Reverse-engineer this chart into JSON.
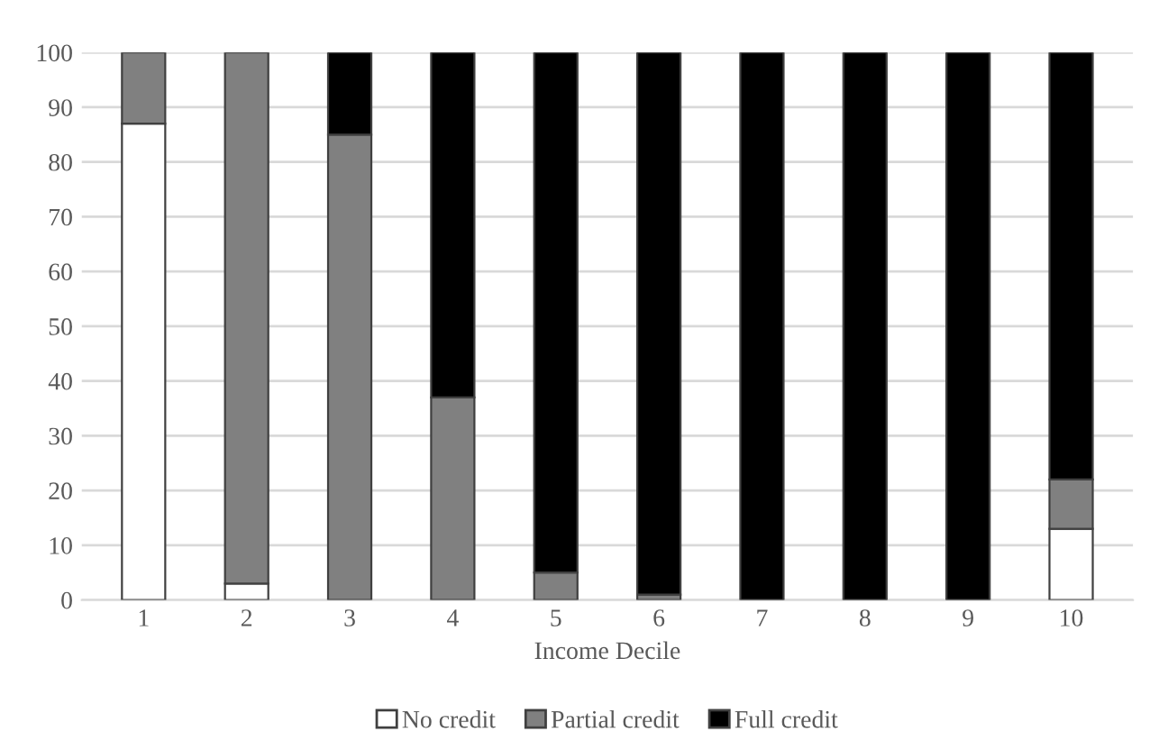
{
  "chart_data": {
    "type": "bar",
    "stacked": true,
    "xlabel": "Income Decile",
    "categories": [
      "1",
      "2",
      "3",
      "4",
      "5",
      "6",
      "7",
      "8",
      "9",
      "10"
    ],
    "series": [
      {
        "name": "No credit",
        "color": "#ffffff",
        "values": [
          87,
          3,
          0,
          0,
          0,
          0,
          0,
          0,
          0,
          13
        ]
      },
      {
        "name": "Partial credit",
        "color": "#808080",
        "values": [
          13,
          97,
          85,
          37,
          5,
          1,
          0,
          0,
          0,
          9
        ]
      },
      {
        "name": "Full credit",
        "color": "#000000",
        "values": [
          0,
          0,
          15,
          63,
          95,
          99,
          100,
          100,
          100,
          78
        ]
      }
    ],
    "ylim": [
      0,
      100
    ],
    "yticks": [
      0,
      10,
      20,
      30,
      40,
      50,
      60,
      70,
      80,
      90,
      100
    ],
    "grid": "y",
    "legend": "bottom"
  }
}
